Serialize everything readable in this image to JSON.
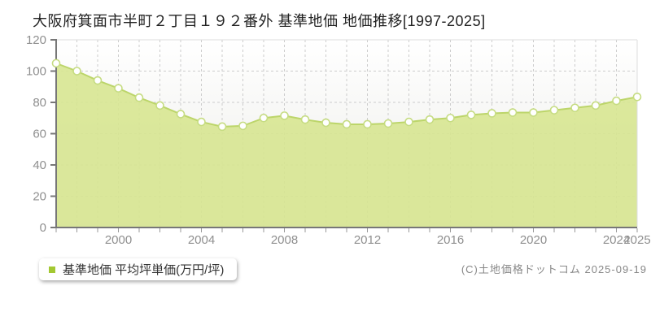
{
  "title": "大阪府箕面市半町２丁目１９２番外 基準地価 地価推移[1997-2025]",
  "legend": {
    "label": "基準地価 平均坪単価(万円/坪)",
    "marker_color": "#a3c832"
  },
  "footer": {
    "copyright": "(C)土地価格ドットコム 2025-09-19"
  },
  "chart_data": {
    "type": "area",
    "title": "大阪府箕面市半町２丁目１９２番外 基準地価 地価推移[1997-2025]",
    "ylabel": "平均坪単価(万円/坪)",
    "unit": "万円/坪",
    "x": [
      1997,
      1998,
      1999,
      2000,
      2001,
      2002,
      2003,
      2004,
      2005,
      2006,
      2007,
      2008,
      2009,
      2010,
      2011,
      2012,
      2013,
      2014,
      2015,
      2016,
      2017,
      2018,
      2019,
      2020,
      2021,
      2022,
      2023,
      2024,
      2025
    ],
    "values": [
      105,
      100,
      94,
      89,
      83,
      78,
      72.5,
      67.5,
      64.5,
      65,
      70,
      71.5,
      69,
      67,
      66,
      66,
      66.5,
      67.5,
      69,
      70,
      72,
      73,
      73.5,
      73.5,
      75,
      76.5,
      78,
      81,
      83.5
    ],
    "ylim": [
      0,
      120
    ],
    "y_ticks": [
      0,
      20,
      40,
      60,
      80,
      100,
      120
    ],
    "x_tick_labels": [
      2000,
      2004,
      2008,
      2012,
      2016,
      2020,
      2024,
      2025
    ],
    "grid": "dashed",
    "legend_position": "bottom-left",
    "colors": {
      "line": "#bcd56a",
      "fill": "#d7e591",
      "marker_fill": "#ffffff",
      "marker_stroke": "#c6dc82",
      "grid": "#cccccc",
      "axis": "#777777",
      "border": "#dddddd"
    }
  }
}
